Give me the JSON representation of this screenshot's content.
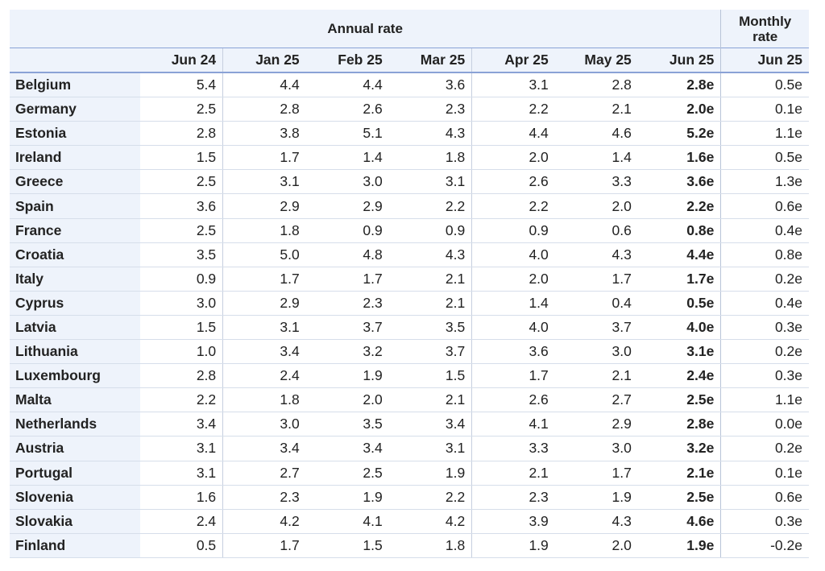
{
  "table": {
    "group_annual": "Annual rate",
    "group_monthly_line1": "Monthly",
    "group_monthly_line2": "rate",
    "columns": [
      "Jun 24",
      "Jan 25",
      "Feb 25",
      "Mar 25",
      "Apr 25",
      "May 25",
      "Jun 25",
      "Jun 25"
    ],
    "rows": [
      {
        "country": "Belgium",
        "values": [
          "5.4",
          "4.4",
          "4.4",
          "3.6",
          "3.1",
          "2.8",
          "2.8e",
          "0.5e"
        ]
      },
      {
        "country": "Germany",
        "values": [
          "2.5",
          "2.8",
          "2.6",
          "2.3",
          "2.2",
          "2.1",
          "2.0e",
          "0.1e"
        ]
      },
      {
        "country": "Estonia",
        "values": [
          "2.8",
          "3.8",
          "5.1",
          "4.3",
          "4.4",
          "4.6",
          "5.2e",
          "1.1e"
        ]
      },
      {
        "country": "Ireland",
        "values": [
          "1.5",
          "1.7",
          "1.4",
          "1.8",
          "2.0",
          "1.4",
          "1.6e",
          "0.5e"
        ]
      },
      {
        "country": "Greece",
        "values": [
          "2.5",
          "3.1",
          "3.0",
          "3.1",
          "2.6",
          "3.3",
          "3.6e",
          "1.3e"
        ]
      },
      {
        "country": "Spain",
        "values": [
          "3.6",
          "2.9",
          "2.9",
          "2.2",
          "2.2",
          "2.0",
          "2.2e",
          "0.6e"
        ]
      },
      {
        "country": "France",
        "values": [
          "2.5",
          "1.8",
          "0.9",
          "0.9",
          "0.9",
          "0.6",
          "0.8e",
          "0.4e"
        ]
      },
      {
        "country": "Croatia",
        "values": [
          "3.5",
          "5.0",
          "4.8",
          "4.3",
          "4.0",
          "4.3",
          "4.4e",
          "0.8e"
        ]
      },
      {
        "country": "Italy",
        "values": [
          "0.9",
          "1.7",
          "1.7",
          "2.1",
          "2.0",
          "1.7",
          "1.7e",
          "0.2e"
        ]
      },
      {
        "country": "Cyprus",
        "values": [
          "3.0",
          "2.9",
          "2.3",
          "2.1",
          "1.4",
          "0.4",
          "0.5e",
          "0.4e"
        ]
      },
      {
        "country": "Latvia",
        "values": [
          "1.5",
          "3.1",
          "3.7",
          "3.5",
          "4.0",
          "3.7",
          "4.0e",
          "0.3e"
        ]
      },
      {
        "country": "Lithuania",
        "values": [
          "1.0",
          "3.4",
          "3.2",
          "3.7",
          "3.6",
          "3.0",
          "3.1e",
          "0.2e"
        ]
      },
      {
        "country": "Luxembourg",
        "values": [
          "2.8",
          "2.4",
          "1.9",
          "1.5",
          "1.7",
          "2.1",
          "2.4e",
          "0.3e"
        ]
      },
      {
        "country": "Malta",
        "values": [
          "2.2",
          "1.8",
          "2.0",
          "2.1",
          "2.6",
          "2.7",
          "2.5e",
          "1.1e"
        ]
      },
      {
        "country": "Netherlands",
        "values": [
          "3.4",
          "3.0",
          "3.5",
          "3.4",
          "4.1",
          "2.9",
          "2.8e",
          "0.0e"
        ]
      },
      {
        "country": "Austria",
        "values": [
          "3.1",
          "3.4",
          "3.4",
          "3.1",
          "3.3",
          "3.0",
          "3.2e",
          "0.2e"
        ]
      },
      {
        "country": "Portugal",
        "values": [
          "3.1",
          "2.7",
          "2.5",
          "1.9",
          "2.1",
          "1.7",
          "2.1e",
          "0.1e"
        ]
      },
      {
        "country": "Slovenia",
        "values": [
          "1.6",
          "2.3",
          "1.9",
          "2.2",
          "2.3",
          "1.9",
          "2.5e",
          "0.6e"
        ]
      },
      {
        "country": "Slovakia",
        "values": [
          "2.4",
          "4.2",
          "4.1",
          "4.2",
          "3.9",
          "4.3",
          "4.6e",
          "0.3e"
        ]
      },
      {
        "country": "Finland",
        "values": [
          "0.5",
          "1.7",
          "1.5",
          "1.8",
          "1.9",
          "2.0",
          "1.9e",
          "-0.2e"
        ]
      }
    ]
  }
}
